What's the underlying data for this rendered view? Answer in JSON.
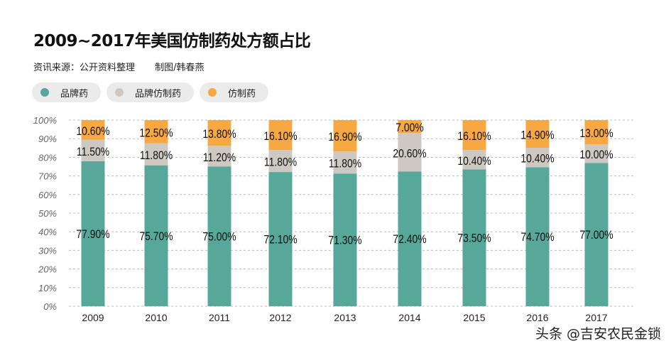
{
  "title": "2009~2017年美国仿制药处方额占比",
  "subtitle": {
    "source": "资讯来源：公开资料整理",
    "author": "制图/韩春燕"
  },
  "watermark": "头条 @吉安农民金锁",
  "chart_data": {
    "type": "bar",
    "stacked": "percent",
    "title": "2009~2017年美国仿制药处方额占比",
    "categories": [
      "2009",
      "2010",
      "2011",
      "2012",
      "2013",
      "2014",
      "2015",
      "2016",
      "2017"
    ],
    "ylim": [
      0,
      100
    ],
    "yticks": [
      "0%",
      "10%",
      "20%",
      "30%",
      "40%",
      "50%",
      "60%",
      "70%",
      "80%",
      "90%",
      "100%"
    ],
    "grid": true,
    "legend_position": "top-left",
    "series": [
      {
        "name": "品牌药",
        "color": "#57a89b",
        "values": [
          77.9,
          75.7,
          75.0,
          72.1,
          71.3,
          72.4,
          73.5,
          74.7,
          77.0
        ],
        "labels": [
          "77.90%",
          "75.70%",
          "75.00%",
          "72.10%",
          "71.30%",
          "72.40%",
          "73.50%",
          "74.70%",
          "77.00%"
        ]
      },
      {
        "name": "品牌仿制药",
        "color": "#cdc8c1",
        "values": [
          11.5,
          11.8,
          11.2,
          11.8,
          11.8,
          20.6,
          10.4,
          10.4,
          10.0
        ],
        "labels": [
          "11.50%",
          "11.80%",
          "11.20%",
          "11.80%",
          "11.80%",
          "20.60%",
          "10.40%",
          "10.40%",
          "10.00%"
        ]
      },
      {
        "name": "仿制药",
        "color": "#f5a843",
        "values": [
          10.6,
          12.5,
          13.8,
          16.1,
          16.9,
          7.0,
          16.1,
          14.9,
          13.0
        ],
        "labels": [
          "10.60%",
          "12.50%",
          "13.80%",
          "16.10%",
          "16.90%",
          "7.00%",
          "16.10%",
          "14.90%",
          "13.00%"
        ]
      }
    ]
  }
}
